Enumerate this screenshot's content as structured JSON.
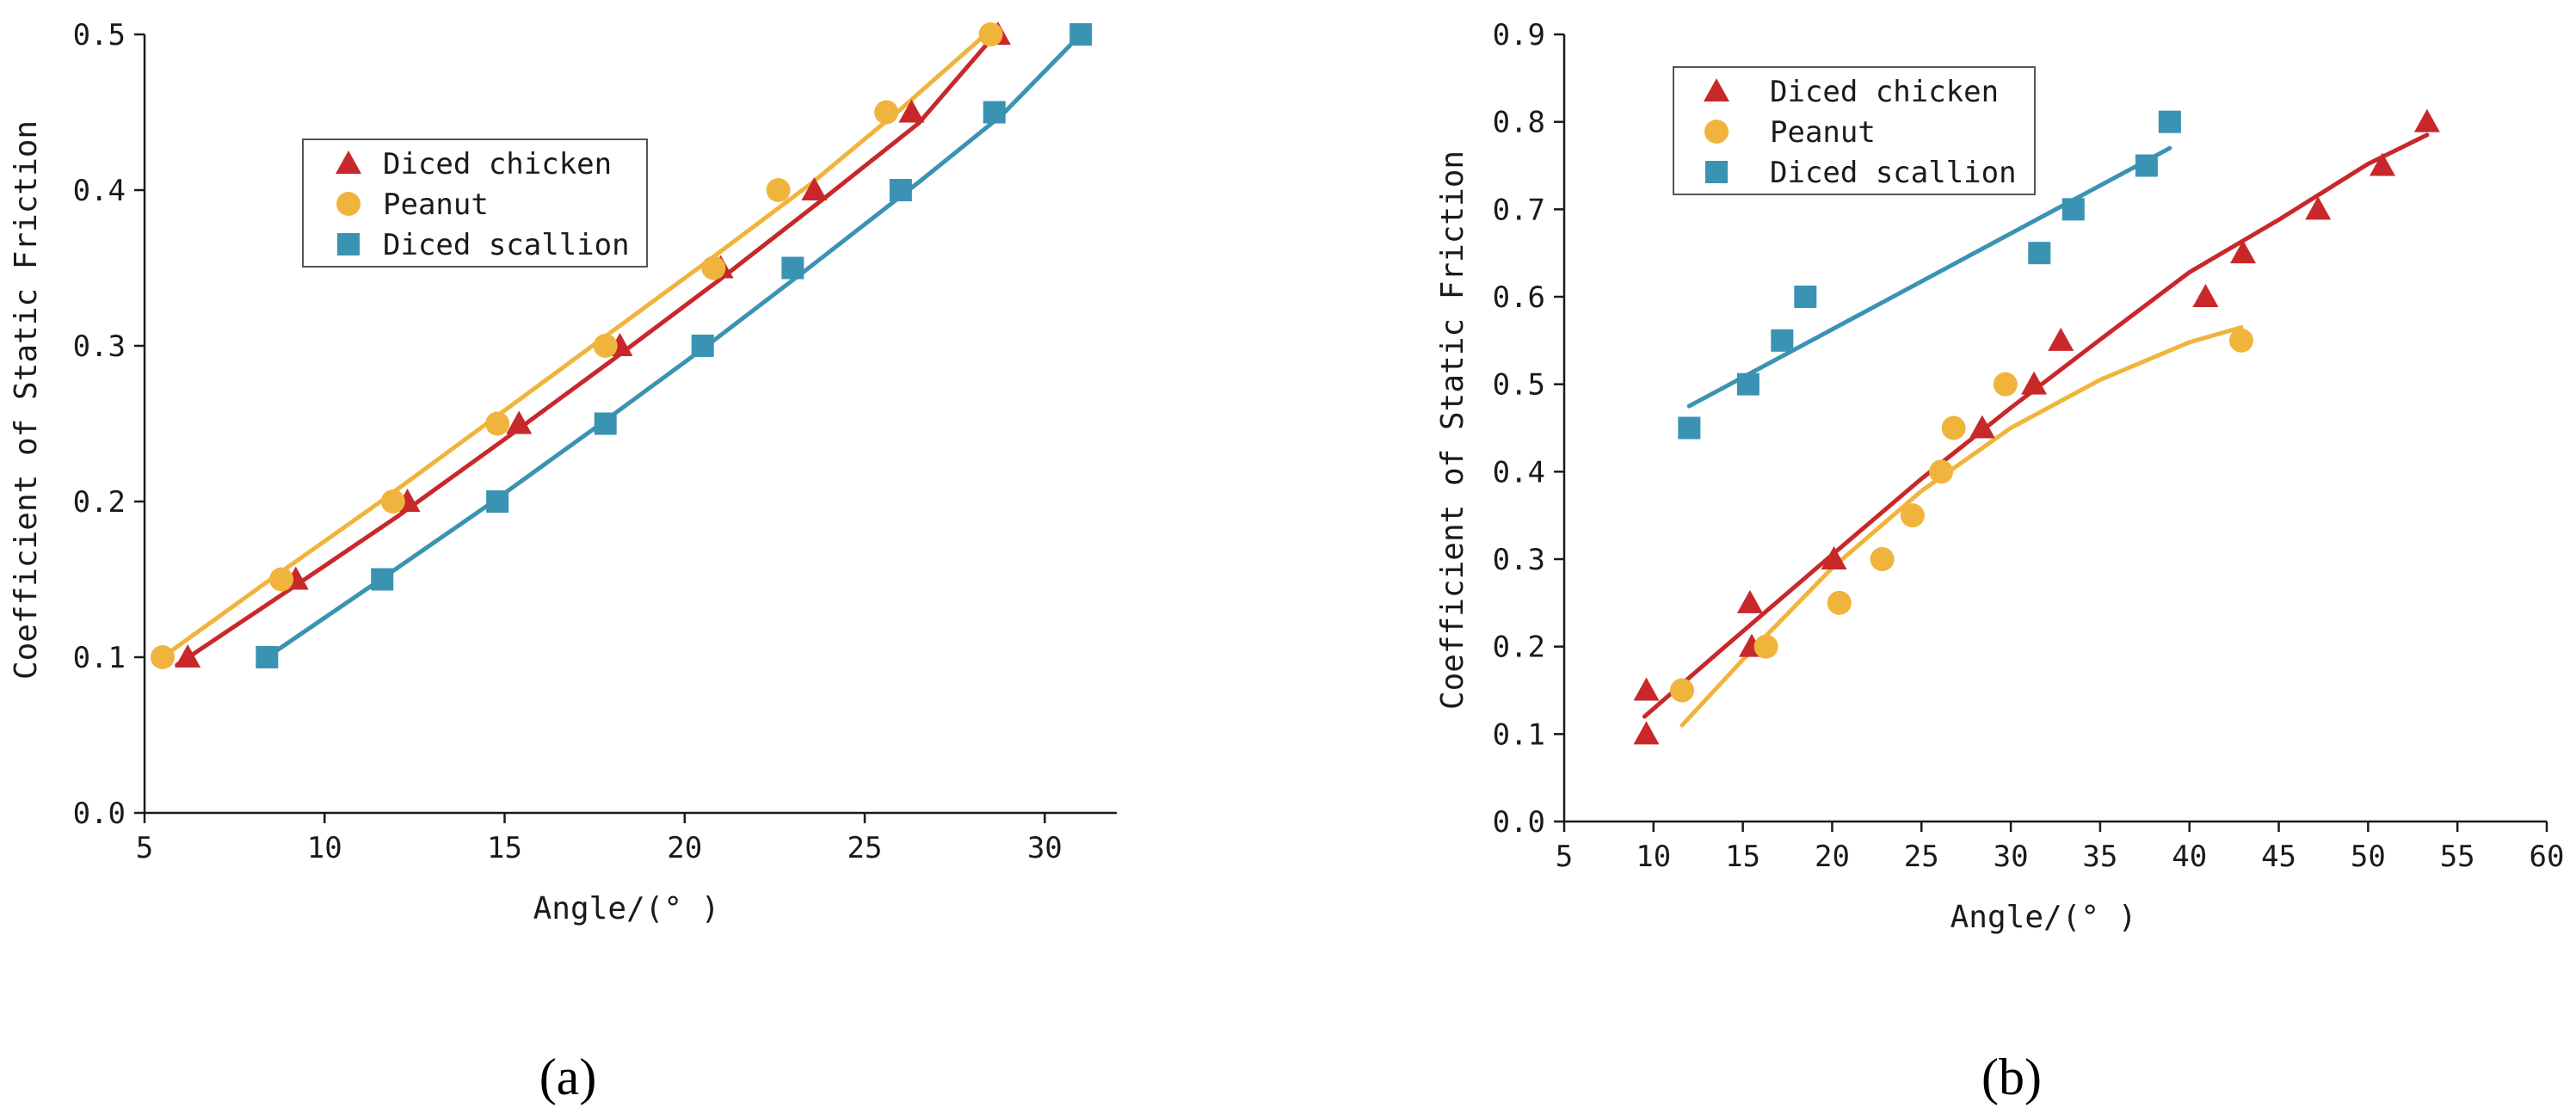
{
  "chart_data": [
    {
      "type": "scatter",
      "panel_label": "(a)",
      "title": "",
      "xlabel": "Angle/(° )",
      "ylabel": "Coefficient of Static Friction",
      "xlim": [
        5,
        32
      ],
      "ylim": [
        0,
        0.5
      ],
      "xticks": [
        5,
        10,
        15,
        20,
        25,
        30
      ],
      "yticks": [
        0.0,
        0.1,
        0.2,
        0.3,
        0.4,
        0.5
      ],
      "ytick_labels": [
        "0.0",
        "0.1",
        "0.2",
        "0.3",
        "0.4",
        "0.5"
      ],
      "legend_position": "top-center",
      "series": [
        {
          "name": "Diced chicken",
          "marker": "triangle",
          "color": "#c8282a",
          "x": [
            6.2,
            9.2,
            12.3,
            15.4,
            18.2,
            21.0,
            23.6,
            26.3,
            28.7
          ],
          "y": [
            0.1,
            0.15,
            0.2,
            0.25,
            0.3,
            0.35,
            0.4,
            0.45,
            0.5
          ],
          "fit_x": [
            5.9,
            9.0,
            12.0,
            15.0,
            18.0,
            21.0,
            24.0,
            26.5,
            28.7
          ],
          "fit_y": [
            0.095,
            0.143,
            0.19,
            0.24,
            0.291,
            0.343,
            0.397,
            0.443,
            0.502
          ]
        },
        {
          "name": "Peanut",
          "marker": "circle",
          "color": "#f0b43c",
          "x": [
            5.5,
            8.8,
            11.9,
            14.8,
            17.8,
            20.8,
            22.6,
            25.6,
            28.5
          ],
          "y": [
            0.1,
            0.15,
            0.2,
            0.25,
            0.3,
            0.35,
            0.4,
            0.45,
            0.5
          ],
          "fit_x": [
            5.5,
            8.5,
            11.5,
            14.5,
            17.5,
            20.5,
            23.5,
            26.0,
            28.6
          ],
          "fit_y": [
            0.1,
            0.15,
            0.199,
            0.25,
            0.301,
            0.352,
            0.404,
            0.452,
            0.505
          ]
        },
        {
          "name": "Diced scallion",
          "marker": "square",
          "color": "#3a93b3",
          "x": [
            8.4,
            11.6,
            14.8,
            17.8,
            20.5,
            23.0,
            26.0,
            28.6,
            31.0
          ],
          "y": [
            0.1,
            0.15,
            0.2,
            0.25,
            0.3,
            0.35,
            0.4,
            0.45,
            0.5
          ],
          "fit_x": [
            8.4,
            11.5,
            14.5,
            17.5,
            20.5,
            23.5,
            26.5,
            28.8,
            31.0
          ],
          "fit_y": [
            0.1,
            0.149,
            0.197,
            0.247,
            0.298,
            0.351,
            0.405,
            0.448,
            0.5
          ]
        }
      ]
    },
    {
      "type": "scatter",
      "panel_label": "(b)",
      "title": "",
      "xlabel": "Angle/(° )",
      "ylabel": "Coefficient of Static Friction",
      "xlim": [
        5,
        60
      ],
      "ylim": [
        0,
        0.9
      ],
      "xticks": [
        5,
        10,
        15,
        20,
        25,
        30,
        35,
        40,
        45,
        50,
        55,
        60
      ],
      "yticks": [
        0.0,
        0.1,
        0.2,
        0.3,
        0.4,
        0.5,
        0.6,
        0.7,
        0.8,
        0.9
      ],
      "ytick_labels": [
        "0.0",
        "0.1",
        "0.2",
        "0.3",
        "0.4",
        "0.5",
        "0.6",
        "0.7",
        "0.8",
        "0.9"
      ],
      "legend_position": "top-left",
      "series": [
        {
          "name": "Diced chicken",
          "marker": "triangle",
          "color": "#c8282a",
          "x": [
            9.6,
            9.6,
            15.5,
            15.4,
            20.1,
            28.4,
            31.3,
            32.8,
            40.9,
            43.0,
            47.2,
            50.8,
            53.3
          ],
          "y": [
            0.1,
            0.15,
            0.2,
            0.25,
            0.3,
            0.45,
            0.5,
            0.55,
            0.6,
            0.65,
            0.7,
            0.75,
            0.8
          ],
          "fit_x": [
            9.5,
            14.0,
            20.0,
            25.0,
            30.0,
            35.0,
            40.0,
            45.0,
            50.0,
            53.3
          ],
          "fit_y": [
            0.12,
            0.2,
            0.305,
            0.392,
            0.473,
            0.551,
            0.628,
            0.688,
            0.752,
            0.785
          ]
        },
        {
          "name": "Peanut",
          "marker": "circle",
          "color": "#f0b43c",
          "x": [
            11.6,
            16.3,
            20.4,
            22.8,
            24.5,
            26.1,
            26.8,
            29.7,
            42.9
          ],
          "y": [
            0.15,
            0.2,
            0.25,
            0.3,
            0.35,
            0.4,
            0.45,
            0.5,
            0.55
          ],
          "fit_x": [
            11.6,
            15.0,
            20.0,
            25.0,
            30.0,
            35.0,
            40.0,
            42.9
          ],
          "fit_y": [
            0.11,
            0.185,
            0.29,
            0.378,
            0.45,
            0.505,
            0.548,
            0.565
          ]
        },
        {
          "name": "Diced scallion",
          "marker": "square",
          "color": "#3a93b3",
          "x": [
            12.0,
            15.3,
            17.2,
            18.5,
            31.6,
            33.5,
            37.6,
            38.9
          ],
          "y": [
            0.45,
            0.5,
            0.55,
            0.6,
            0.65,
            0.7,
            0.75,
            0.8
          ],
          "fit_x": [
            12.0,
            38.9
          ],
          "fit_y": [
            0.475,
            0.77
          ]
        }
      ]
    }
  ]
}
